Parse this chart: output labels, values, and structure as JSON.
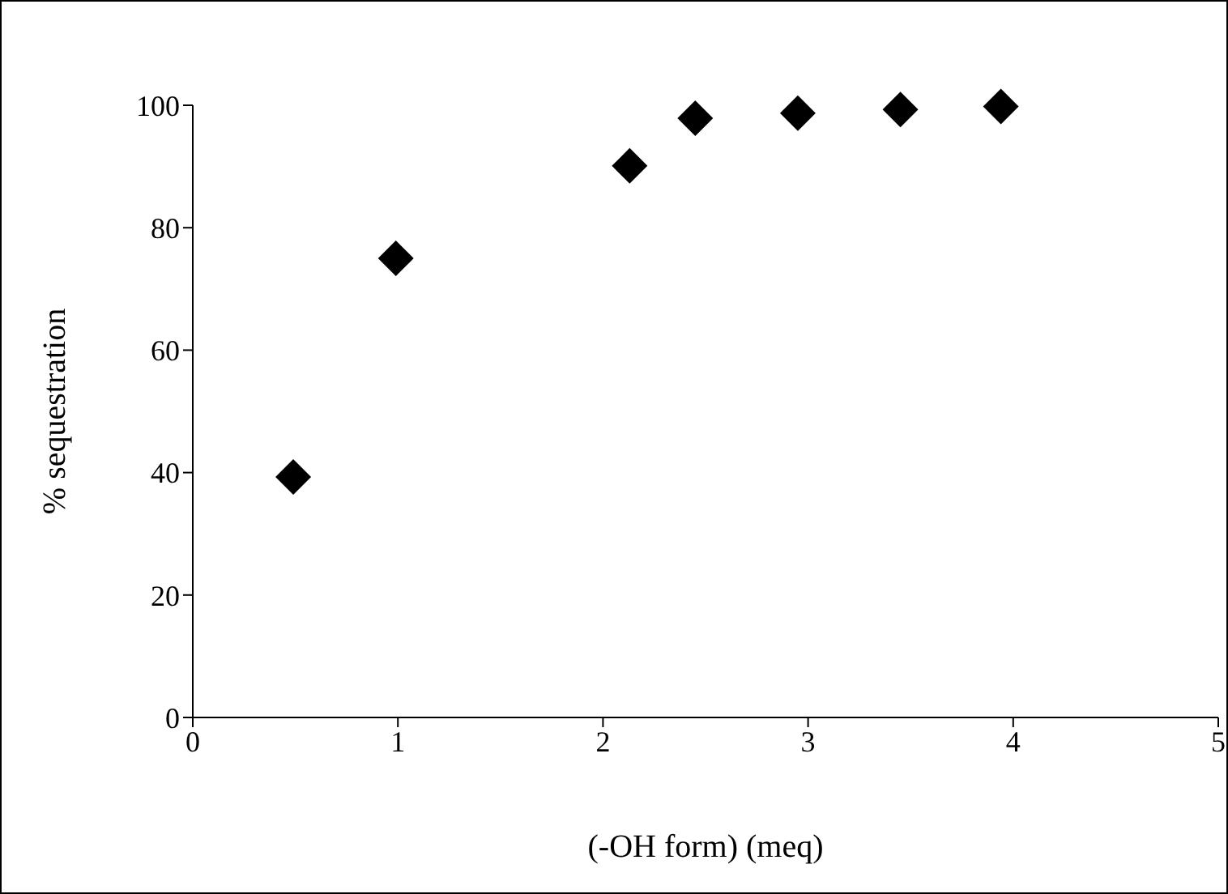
{
  "chart_data": {
    "type": "scatter",
    "xlabel": "(-OH form) (meq)",
    "ylabel": "% sequestration",
    "x": [
      0.49,
      0.99,
      2.13,
      2.45,
      2.95,
      3.45,
      3.94
    ],
    "series": [
      {
        "color": "#000000",
        "values": [
          39.3,
          75.0,
          90.1,
          97.9,
          98.7,
          99.3,
          99.8
        ]
      }
    ],
    "xlim": [
      0,
      5
    ],
    "xticks": [
      0,
      1,
      2,
      3,
      4,
      5
    ],
    "ylim": [
      0,
      100
    ],
    "yticks": [
      0,
      20,
      40,
      60,
      80,
      100
    ],
    "marker": "diamond",
    "grid": false
  }
}
